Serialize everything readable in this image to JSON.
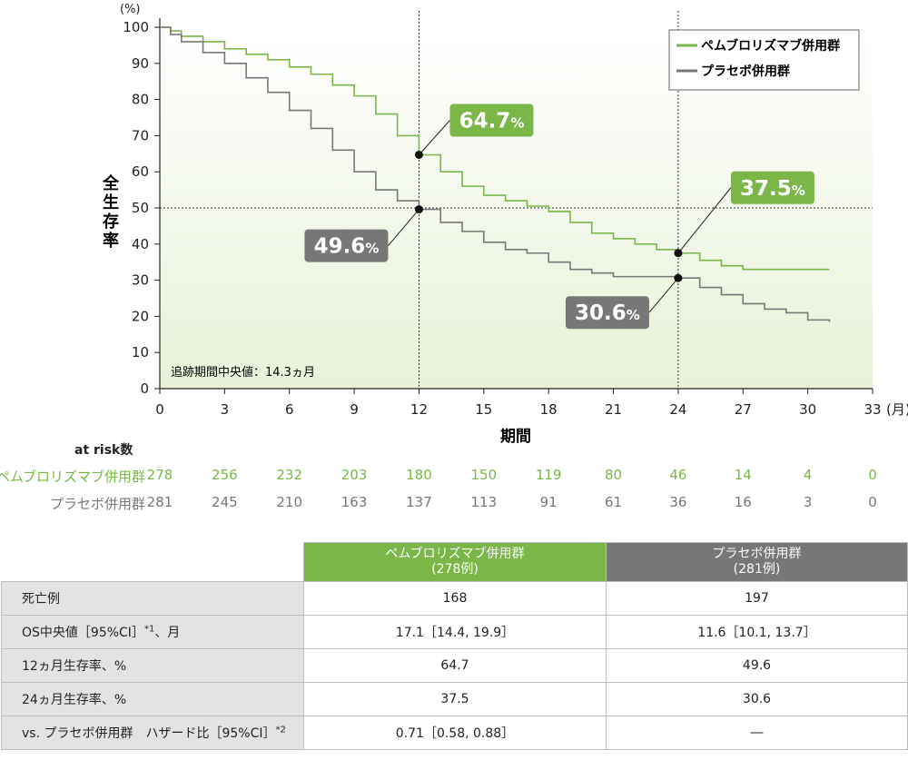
{
  "chart_data": {
    "type": "line",
    "y_unit": "(%)",
    "ylabel": "全生存率",
    "xlabel": "期間",
    "x_unit": "(月)",
    "xlim": [
      0,
      33
    ],
    "ylim": [
      0,
      100
    ],
    "x_ticks": [
      "0",
      "3",
      "6",
      "9",
      "12",
      "15",
      "18",
      "21",
      "24",
      "27",
      "30",
      "33"
    ],
    "y_ticks": [
      "0",
      "10",
      "20",
      "30",
      "40",
      "50",
      "60",
      "70",
      "80",
      "90",
      "100"
    ],
    "reference_lines": {
      "x": [
        12,
        24
      ],
      "y": [
        50
      ]
    },
    "note": "追跡期間中央値：14.3ヵ月",
    "legend_position": "top-right",
    "series": [
      {
        "name": "ペムブロリズマブ併用群",
        "color": "#7ab648",
        "points": [
          [
            0,
            100
          ],
          [
            0.5,
            99
          ],
          [
            1,
            97.5
          ],
          [
            2,
            96
          ],
          [
            3,
            94
          ],
          [
            4,
            92.5
          ],
          [
            5,
            91
          ],
          [
            6,
            89
          ],
          [
            7,
            87
          ],
          [
            8,
            84
          ],
          [
            9,
            81
          ],
          [
            10,
            76
          ],
          [
            11,
            70
          ],
          [
            12,
            64.7
          ],
          [
            13,
            60
          ],
          [
            14,
            56
          ],
          [
            15,
            53.5
          ],
          [
            16,
            52
          ],
          [
            17,
            50.5
          ],
          [
            18,
            49
          ],
          [
            19,
            46
          ],
          [
            20,
            43
          ],
          [
            21,
            41.5
          ],
          [
            22,
            40
          ],
          [
            23,
            38.5
          ],
          [
            24,
            37.5
          ],
          [
            25,
            35.5
          ],
          [
            26,
            34
          ],
          [
            27,
            33
          ],
          [
            28,
            33
          ],
          [
            29,
            33
          ],
          [
            30,
            33
          ],
          [
            31,
            33
          ]
        ]
      },
      {
        "name": "プラセボ併用群",
        "color": "#777777",
        "points": [
          [
            0,
            100
          ],
          [
            0.5,
            98
          ],
          [
            1,
            96
          ],
          [
            2,
            93
          ],
          [
            3,
            90
          ],
          [
            4,
            86
          ],
          [
            5,
            82
          ],
          [
            6,
            77
          ],
          [
            7,
            72
          ],
          [
            8,
            66
          ],
          [
            9,
            60
          ],
          [
            10,
            55
          ],
          [
            11,
            52
          ],
          [
            12,
            49.6
          ],
          [
            13,
            46
          ],
          [
            14,
            43.5
          ],
          [
            15,
            40.5
          ],
          [
            16,
            38.5
          ],
          [
            17,
            37.5
          ],
          [
            18,
            35
          ],
          [
            19,
            33
          ],
          [
            20,
            32
          ],
          [
            21,
            31
          ],
          [
            22,
            31
          ],
          [
            23,
            31
          ],
          [
            24,
            30.6
          ],
          [
            25,
            28
          ],
          [
            26,
            26
          ],
          [
            27,
            23.5
          ],
          [
            28,
            22
          ],
          [
            29,
            21
          ],
          [
            30,
            19
          ],
          [
            31,
            18.5
          ]
        ]
      }
    ],
    "annotations": [
      {
        "x": 12,
        "y": 64.7,
        "text": "64.7",
        "unit": "%",
        "color": "#7ab648"
      },
      {
        "x": 12,
        "y": 49.6,
        "text": "49.6",
        "unit": "%",
        "color": "#777777"
      },
      {
        "x": 24,
        "y": 37.5,
        "text": "37.5",
        "unit": "%",
        "color": "#7ab648"
      },
      {
        "x": 24,
        "y": 30.6,
        "text": "30.6",
        "unit": "%",
        "color": "#777777"
      }
    ]
  },
  "at_risk": {
    "title": "at risk数",
    "rows": [
      {
        "label": "ペムブロリズマブ併用群",
        "color": "#7ab648",
        "values": [
          "278",
          "256",
          "232",
          "203",
          "180",
          "150",
          "119",
          "80",
          "46",
          "14",
          "4",
          "0"
        ]
      },
      {
        "label": "プラセボ併用群",
        "color": "#777777",
        "values": [
          "281",
          "245",
          "210",
          "163",
          "137",
          "113",
          "91",
          "61",
          "36",
          "16",
          "3",
          "0"
        ]
      }
    ]
  },
  "summary_table": {
    "headers": [
      {
        "name": "ペムブロリズマブ併用群",
        "count": "(278例)"
      },
      {
        "name": "プラセボ併用群",
        "count": "(281例)"
      }
    ],
    "rows": [
      {
        "label": "死亡例",
        "sup": "",
        "suffix": "",
        "pem": "168",
        "pla": "197"
      },
      {
        "label": "OS中央値［95%CI］",
        "sup": "*1",
        "suffix": "、月",
        "pem": "17.1［14.4, 19.9］",
        "pla": "11.6［10.1, 13.7］"
      },
      {
        "label": "12ヵ月生存率、%",
        "sup": "",
        "suffix": "",
        "pem": "64.7",
        "pla": "49.6"
      },
      {
        "label": "24ヵ月生存率、%",
        "sup": "",
        "suffix": "",
        "pem": "37.5",
        "pla": "30.6"
      },
      {
        "label": "vs. プラセボ併用群　ハザード比［95%CI］",
        "sup": "*2",
        "suffix": "",
        "pem": "0.71［0.58, 0.88］",
        "pla": "―"
      }
    ]
  }
}
